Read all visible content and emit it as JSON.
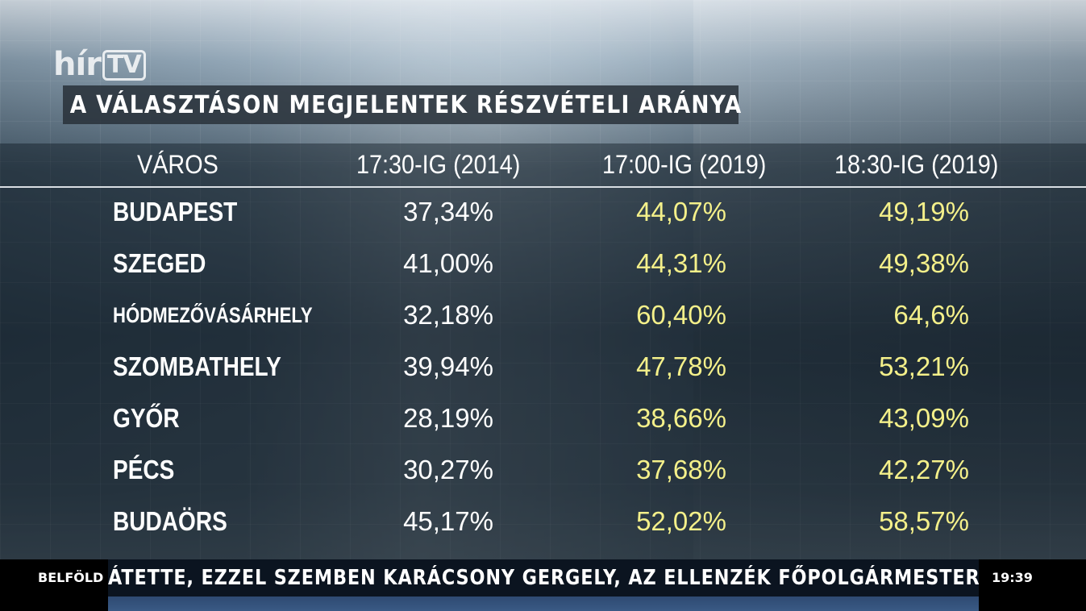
{
  "logo": {
    "hir": "hír",
    "tv": "TV"
  },
  "title": "A VÁLASZTÁSON MEGJELENTEK RÉSZVÉTELI ARÁNYA",
  "table": {
    "headers": [
      "VÁROS",
      "17:30-IG  (2014)",
      "17:00-IG  (2019)",
      "18:30-IG  (2019)"
    ],
    "rows": [
      {
        "city": "BUDAPEST",
        "v2014": "37,34%",
        "v2019_1700": "44,07%",
        "v2019_1830": "49,19%"
      },
      {
        "city": "SZEGED",
        "v2014": "41,00%",
        "v2019_1700": "44,31%",
        "v2019_1830": "49,38%"
      },
      {
        "city": "HÓDMEZŐVÁSÁRHELY",
        "v2014": "32,18%",
        "v2019_1700": "60,40%",
        "v2019_1830": "64,6%"
      },
      {
        "city": "SZOMBATHELY",
        "v2014": "39,94%",
        "v2019_1700": "47,78%",
        "v2019_1830": "53,21%"
      },
      {
        "city": "GYŐR",
        "v2014": "28,19%",
        "v2019_1700": "38,66%",
        "v2019_1830": "43,09%"
      },
      {
        "city": "PÉCS",
        "v2014": "30,27%",
        "v2019_1700": "37,68%",
        "v2019_1830": "42,27%"
      },
      {
        "city": "BUDAÖRS",
        "v2014": "45,17%",
        "v2019_1700": "52,02%",
        "v2019_1830": "58,57%"
      }
    ]
  },
  "ticker": {
    "label": "BELFÖLD",
    "text": "ÁTETTE, EZZEL SZEMBEN KARÁCSONY GERGELY, AZ ELLENZÉK FŐPOLGÁRMESTER-JEL",
    "time": "19:39"
  },
  "colors": {
    "highlight": "#f4f08a",
    "text": "#ffffff",
    "ticker_band": "#0b1420"
  }
}
